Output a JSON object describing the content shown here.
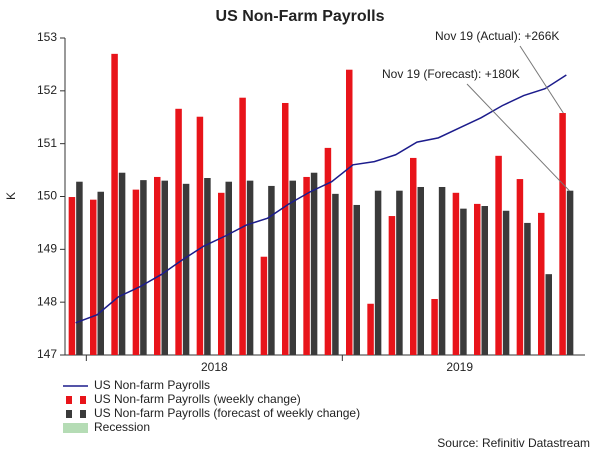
{
  "chart_data": {
    "type": "bar_line",
    "title": "US Non-Farm Payrolls",
    "ylabel": "K",
    "ylim": [
      147,
      153
    ],
    "yticks": [
      147,
      148,
      149,
      150,
      151,
      152,
      153
    ],
    "categories": [
      null,
      null,
      null,
      null,
      null,
      null,
      null,
      null,
      null,
      null,
      null,
      null,
      null,
      null,
      null,
      null,
      null,
      null,
      null,
      null,
      null,
      null,
      null,
      null
    ],
    "xgroups": [
      {
        "label": "2018",
        "start": 1,
        "end": 12
      },
      {
        "label": "2019",
        "start": 13,
        "end": 23
      }
    ],
    "series": [
      {
        "name": "US Non-farm Payrolls",
        "kind": "line",
        "color": "#1c1c8c",
        "values": [
          147.61,
          147.76,
          148.1,
          148.29,
          148.52,
          148.8,
          149.06,
          149.25,
          149.46,
          149.59,
          149.86,
          150.09,
          150.28,
          150.6,
          150.66,
          150.79,
          151.03,
          151.11,
          151.3,
          151.49,
          151.72,
          151.91,
          152.04,
          152.3
        ]
      },
      {
        "name": "US Non-farm Payrolls (weekly change)",
        "kind": "bar",
        "color": "#e8141a",
        "values": [
          149.99,
          149.94,
          152.7,
          150.13,
          150.37,
          151.66,
          151.51,
          150.07,
          151.87,
          148.86,
          151.77,
          150.37,
          150.92,
          152.4,
          147.97,
          149.63,
          150.73,
          148.06,
          150.07,
          149.86,
          150.77,
          150.33,
          149.69,
          151.58
        ]
      },
      {
        "name": "US Non-farm Payrolls (forecast of weekly change)",
        "kind": "bar",
        "color": "#3a3a3a",
        "values": [
          150.28,
          150.09,
          150.45,
          150.31,
          150.3,
          150.24,
          150.35,
          150.28,
          150.3,
          150.2,
          150.3,
          150.45,
          150.05,
          149.84,
          150.11,
          150.11,
          150.18,
          150.18,
          149.77,
          149.82,
          149.73,
          149.5,
          148.53,
          150.11
        ]
      }
    ],
    "recession": {
      "name": "Recession",
      "color": "#b5dcb5"
    },
    "annotations": [
      {
        "text": "Nov 19 (Actual): +266K",
        "series": 1
      },
      {
        "text": "Nov 19 (Forecast): +180K",
        "series": 2
      }
    ],
    "source": "Source: Refinitiv Datastream"
  }
}
